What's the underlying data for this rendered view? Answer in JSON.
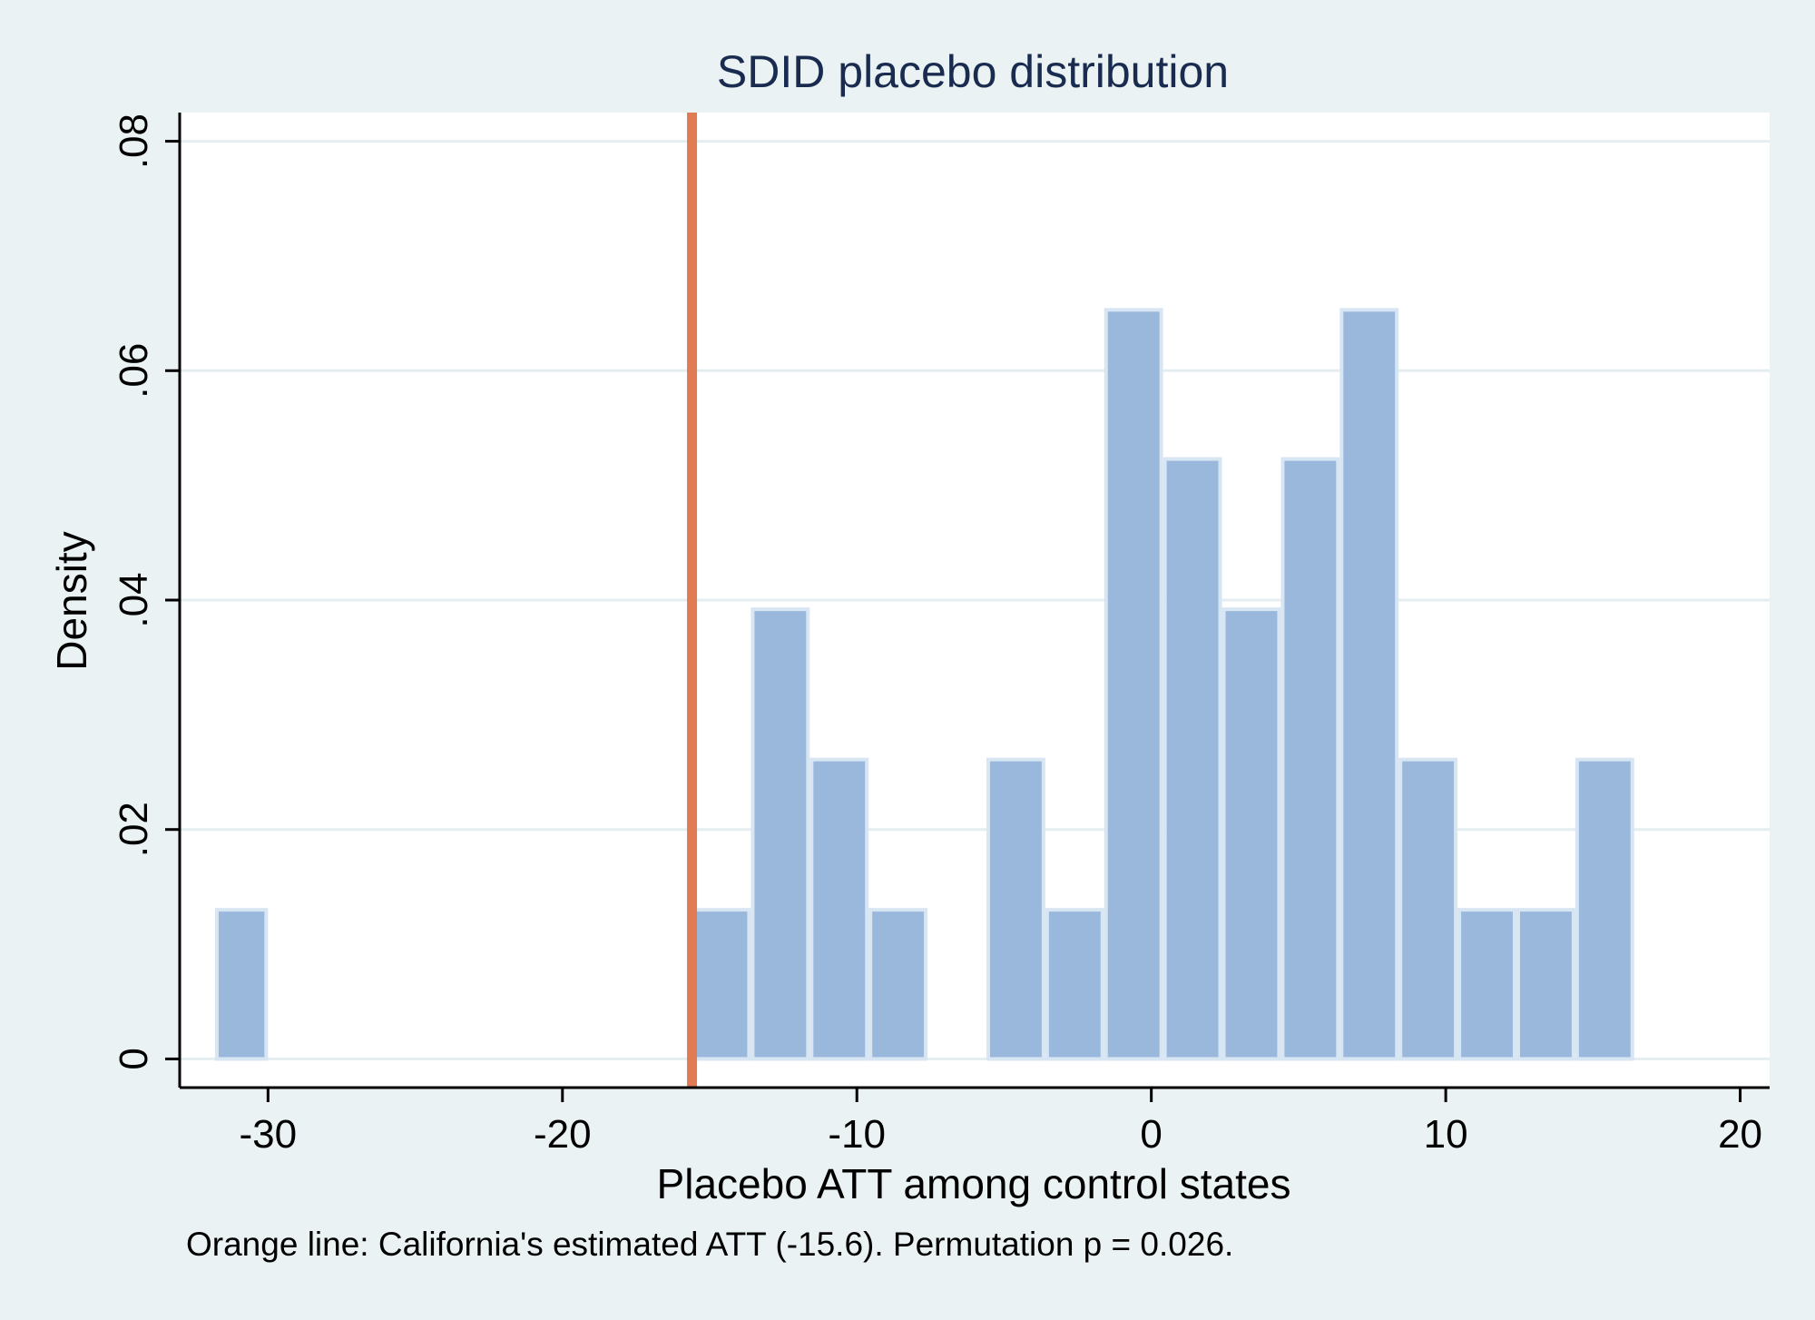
{
  "chart_data": {
    "type": "bar",
    "title": "SDID placebo distribution",
    "xlabel": "Placebo ATT among control states",
    "ylabel": "Density",
    "note": "Orange line: California's estimated ATT (-15.6). Permutation p = 0.026.",
    "xlim": [
      -33,
      21
    ],
    "ylim": [
      -0.0025,
      0.0825
    ],
    "x_ticks": [
      -30,
      -20,
      -10,
      0,
      10,
      20
    ],
    "x_tick_labels": [
      "-30",
      "-20",
      "-10",
      "0",
      "10",
      "20"
    ],
    "y_ticks": [
      0,
      0.02,
      0.04,
      0.06,
      0.08
    ],
    "y_tick_labels": [
      "0",
      ".02",
      ".04",
      ".06",
      ".08"
    ],
    "grid": true,
    "bins": [
      {
        "x0": -31.8,
        "x1": -30.0,
        "density": 0.013
      },
      {
        "x0": -15.6,
        "x1": -13.6,
        "density": 0.013
      },
      {
        "x0": -13.6,
        "x1": -11.6,
        "density": 0.0392
      },
      {
        "x0": -11.6,
        "x1": -9.6,
        "density": 0.0261
      },
      {
        "x0": -9.6,
        "x1": -7.6,
        "density": 0.013
      },
      {
        "x0": -5.6,
        "x1": -3.6,
        "density": 0.0261
      },
      {
        "x0": -3.6,
        "x1": -1.6,
        "density": 0.013
      },
      {
        "x0": -1.6,
        "x1": 0.4,
        "density": 0.0653
      },
      {
        "x0": 0.4,
        "x1": 2.4,
        "density": 0.0523
      },
      {
        "x0": 2.4,
        "x1": 4.4,
        "density": 0.0392
      },
      {
        "x0": 4.4,
        "x1": 6.4,
        "density": 0.0523
      },
      {
        "x0": 6.4,
        "x1": 8.4,
        "density": 0.0653
      },
      {
        "x0": 8.4,
        "x1": 10.4,
        "density": 0.0261
      },
      {
        "x0": 10.4,
        "x1": 12.4,
        "density": 0.013
      },
      {
        "x0": 12.4,
        "x1": 14.4,
        "density": 0.013
      },
      {
        "x0": 14.4,
        "x1": 16.4,
        "density": 0.0261
      }
    ],
    "reference_line": {
      "x": -15.6
    },
    "colors": {
      "bar_fill": "#9ab8dc",
      "bar_edge": "#d8e6f3",
      "reference_line": "#e07b54",
      "plot_bg": "#ffffff",
      "outer_bg": "#eaf2f3",
      "grid": "#e4eef1",
      "title": "#1a2b50"
    }
  }
}
